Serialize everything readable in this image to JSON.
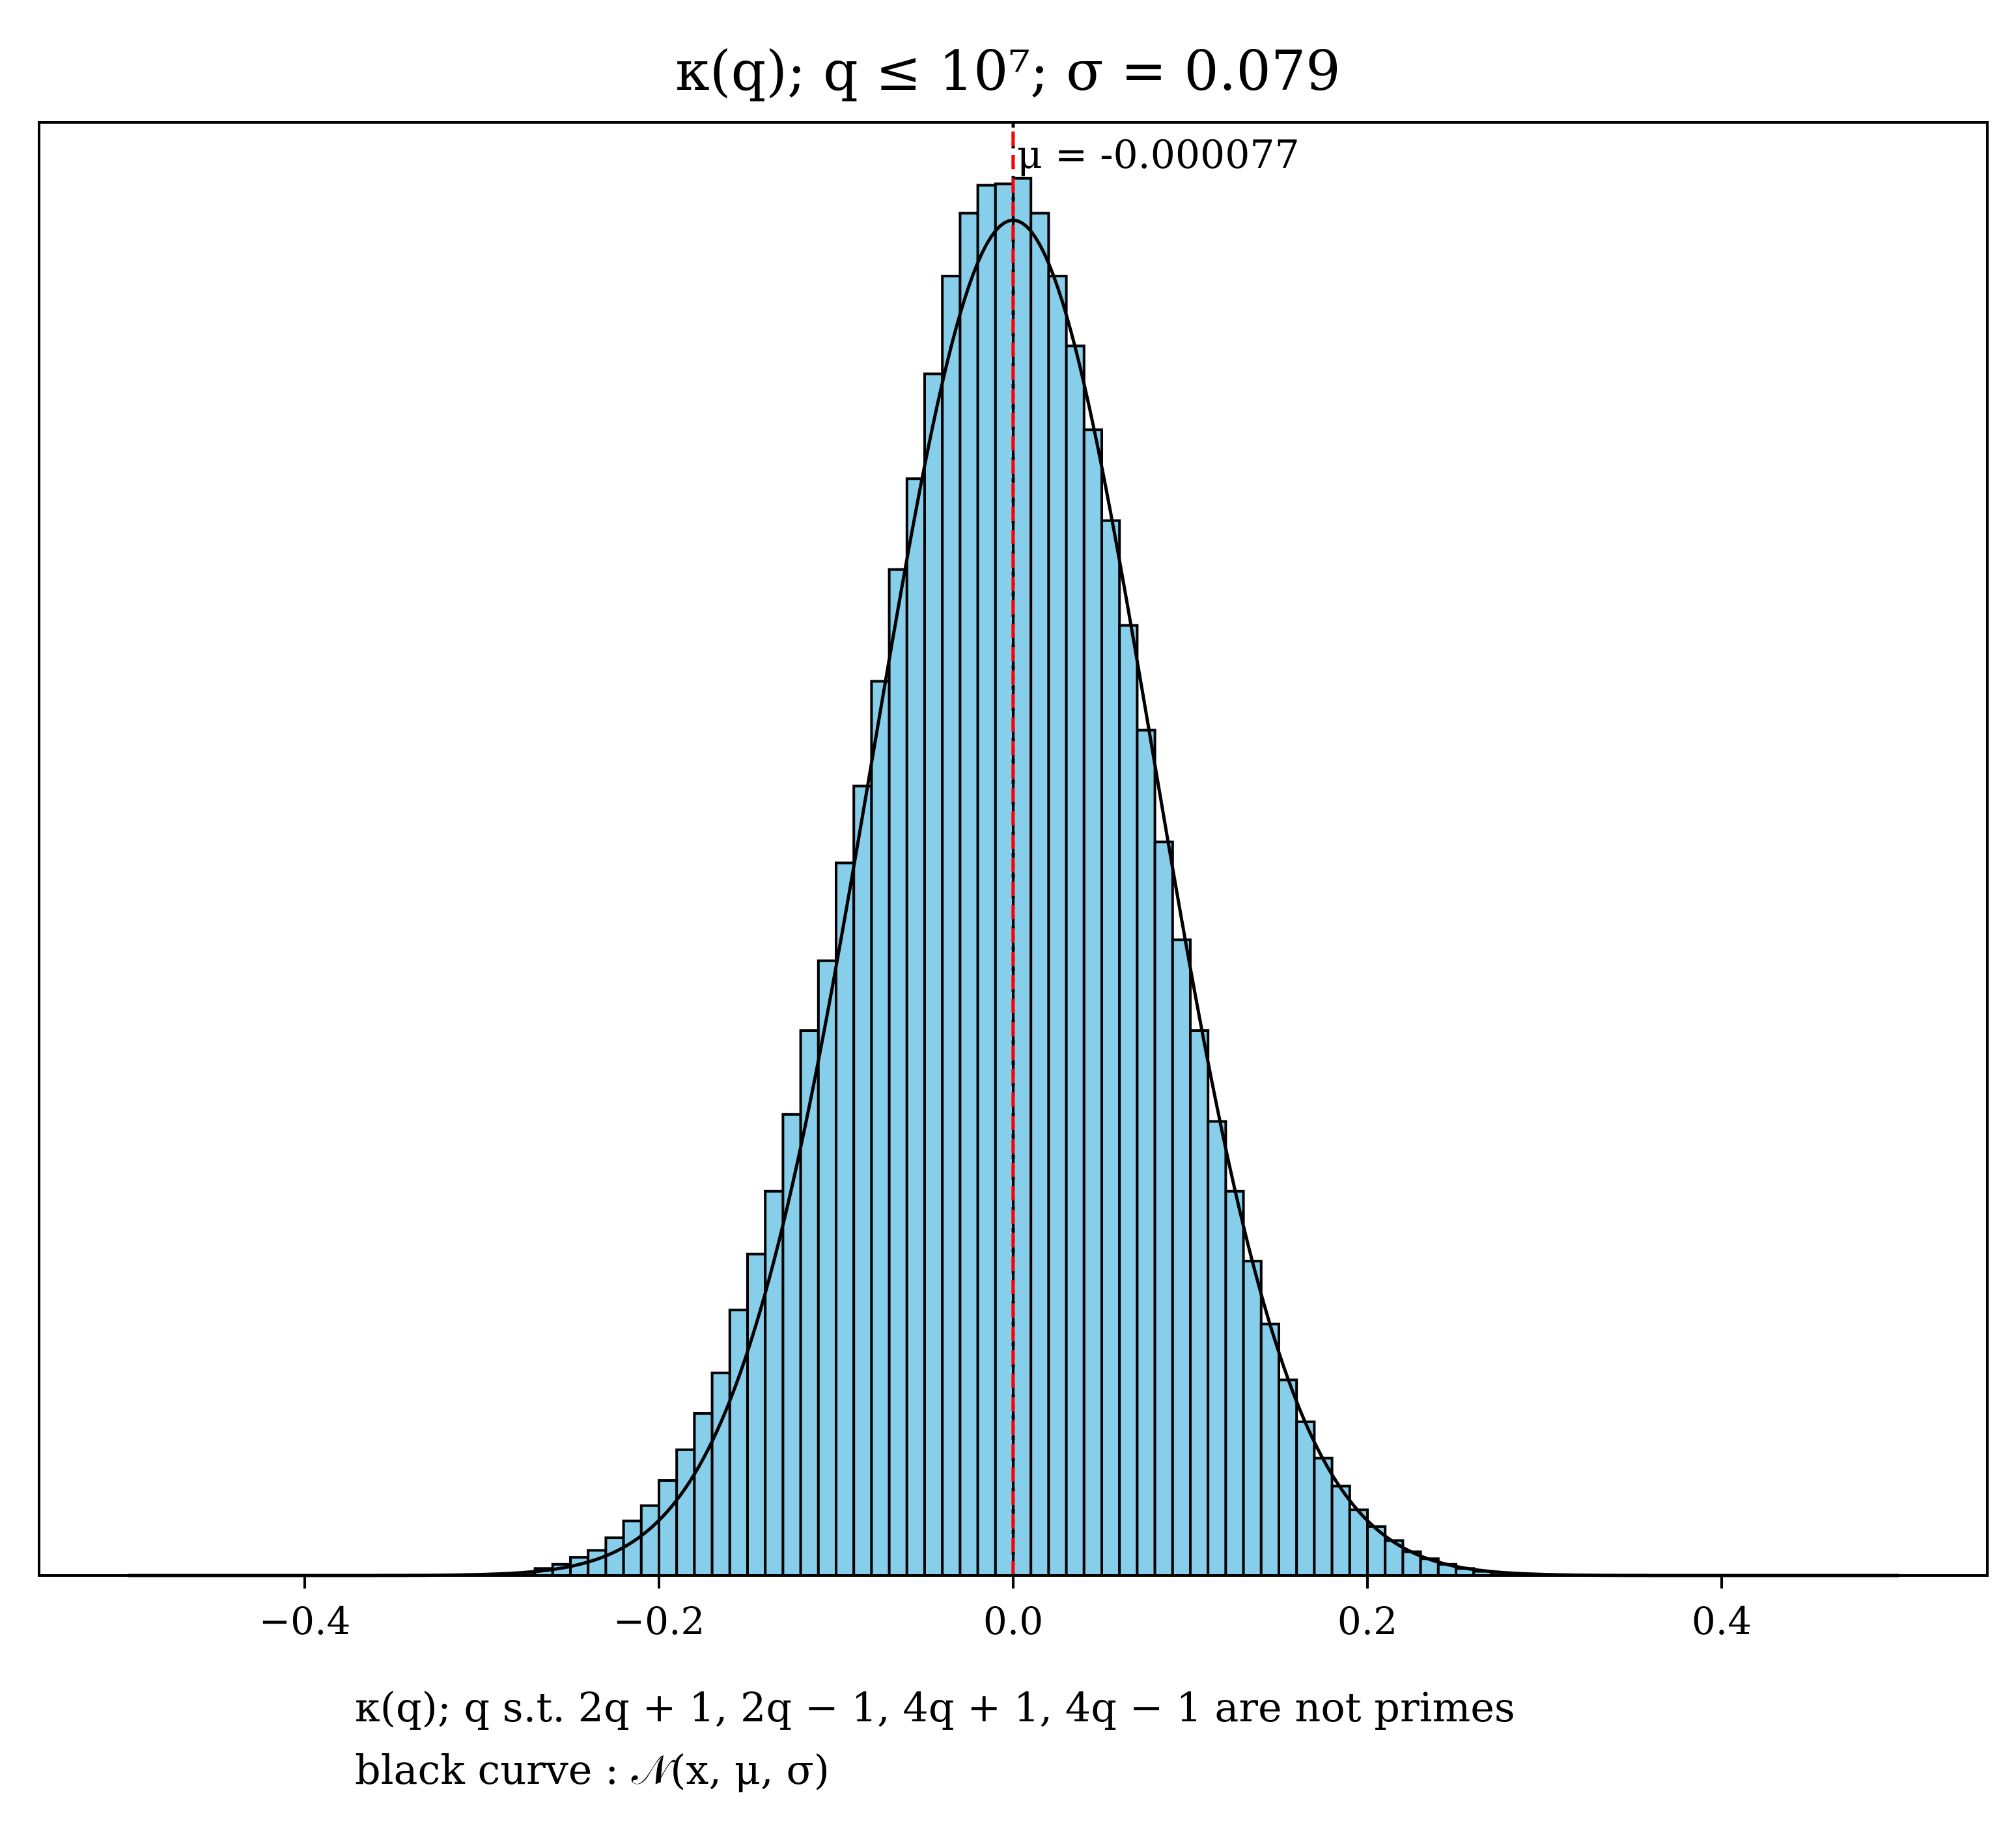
{
  "chart_data": {
    "type": "bar",
    "title": "κ(q); q ≤ 10⁷; σ = 0.079",
    "xlabel_lines": [
      "κ(q); q s.t. 2q + 1, 2q − 1, 4q + 1, 4q − 1 are not primes",
      "black curve : 𝒩(x, μ, σ)"
    ],
    "ylabel": "",
    "xlim": [
      -0.55,
      0.55
    ],
    "ylim": [
      0,
      1.04
    ],
    "xticks": [
      -0.4,
      -0.2,
      0.0,
      0.2,
      0.4
    ],
    "xtick_labels": [
      "−0.4",
      "−0.2",
      "0.0",
      "0.2",
      "0.4"
    ],
    "yticks_shown": false,
    "grid": false,
    "bin_width": 0.01,
    "bins_start": -0.5,
    "bins_end": 0.5,
    "bar_color": "#87ceeb",
    "bar_edge_color": "#000000",
    "mean_line": {
      "value": -7.7e-05,
      "label": "μ = -0.000077",
      "color": "#ff0000",
      "style": "dashed"
    },
    "mean_marker": {
      "value": 0.0,
      "color": "#000000",
      "style": "dotted"
    },
    "normal_curve": {
      "mu": -7.7e-05,
      "sigma": 0.079,
      "peak": 0.97,
      "color": "#000000"
    },
    "series": [
      {
        "name": "",
        "bin_centers": [
          -0.275,
          -0.265,
          -0.255,
          -0.245,
          -0.235,
          -0.225,
          -0.215,
          -0.205,
          -0.195,
          -0.185,
          -0.175,
          -0.165,
          -0.155,
          -0.145,
          -0.135,
          -0.125,
          -0.115,
          -0.105,
          -0.095,
          -0.085,
          -0.075,
          -0.065,
          -0.055,
          -0.045,
          -0.035,
          -0.025,
          -0.015,
          -0.005,
          0.005,
          0.015,
          0.025,
          0.035,
          0.045,
          0.055,
          0.065,
          0.075,
          0.085,
          0.095,
          0.105,
          0.115,
          0.125,
          0.135,
          0.145,
          0.155,
          0.165,
          0.175,
          0.185,
          0.195,
          0.205,
          0.215,
          0.225,
          0.235,
          0.245,
          0.255,
          0.265,
          0.275
        ],
        "values": [
          0.002,
          0.005,
          0.008,
          0.013,
          0.018,
          0.027,
          0.039,
          0.05,
          0.068,
          0.09,
          0.116,
          0.145,
          0.19,
          0.23,
          0.275,
          0.33,
          0.39,
          0.44,
          0.51,
          0.565,
          0.64,
          0.72,
          0.785,
          0.86,
          0.93,
          0.975,
          0.995,
          0.996,
          1.0,
          0.975,
          0.93,
          0.88,
          0.82,
          0.755,
          0.68,
          0.605,
          0.525,
          0.455,
          0.39,
          0.325,
          0.275,
          0.225,
          0.18,
          0.14,
          0.11,
          0.084,
          0.064,
          0.047,
          0.035,
          0.025,
          0.017,
          0.012,
          0.008,
          0.005,
          0.003,
          0.002
        ]
      }
    ],
    "tail_bins_note": "bins from -0.5 to -0.28 and 0.28 to 0.5 are ~0"
  }
}
